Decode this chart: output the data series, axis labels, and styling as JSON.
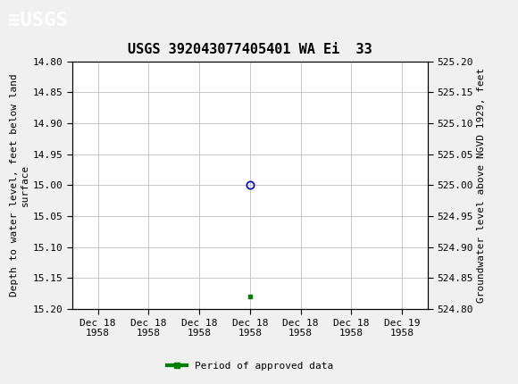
{
  "title": "USGS 392043077405401 WA Ei  33",
  "xlabel_dates": [
    "Dec 18\n1958",
    "Dec 18\n1958",
    "Dec 18\n1958",
    "Dec 18\n1958",
    "Dec 18\n1958",
    "Dec 18\n1958",
    "Dec 19\n1958"
  ],
  "ylabel_left": "Depth to water level, feet below land\nsurface",
  "ylabel_right": "Groundwater level above NGVD 1929, feet",
  "ylim_left": [
    15.2,
    14.8
  ],
  "ylim_right": [
    524.8,
    525.2
  ],
  "yticks_left": [
    14.8,
    14.85,
    14.9,
    14.95,
    15.0,
    15.05,
    15.1,
    15.15,
    15.2
  ],
  "yticks_right": [
    525.2,
    525.15,
    525.1,
    525.05,
    525.0,
    524.95,
    524.9,
    524.85,
    524.8
  ],
  "data_point_x": 3,
  "data_point_y": 15.0,
  "data_point_color": "#0000cc",
  "data_point_marker": "o",
  "data_point_facecolor": "none",
  "green_marker_x": 3,
  "green_marker_y": 15.18,
  "green_color": "#008000",
  "grid_color": "#c8c8c8",
  "bg_color": "#f0f0f0",
  "plot_bg_color": "#ffffff",
  "header_bg_color": "#1a6b3a",
  "header_text_color": "#ffffff",
  "xtick_positions": [
    0,
    1,
    2,
    3,
    4,
    5,
    6
  ],
  "xlim": [
    -0.5,
    6.5
  ],
  "font_family": "DejaVu Sans Mono",
  "title_fontsize": 11,
  "tick_fontsize": 8,
  "label_fontsize": 8,
  "legend_label": "Period of approved data"
}
